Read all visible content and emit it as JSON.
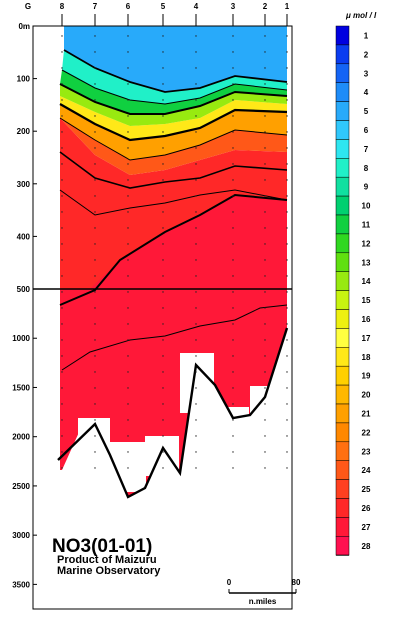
{
  "chart_data": {
    "type": "heatmap",
    "title": "NO3(01-01)",
    "subtitle_lines": [
      "Product of Maizuru",
      "Marine Observatory"
    ],
    "x_axis_corner_label": "G",
    "station_labels": [
      "8",
      "7",
      "6",
      "5",
      "4",
      "3",
      "2",
      "1"
    ],
    "depth_ticks_upper": [
      {
        "label": "0m",
        "value": 0
      },
      {
        "label": "100",
        "value": 100
      },
      {
        "label": "200",
        "value": 200
      },
      {
        "label": "300",
        "value": 300
      },
      {
        "label": "400",
        "value": 400
      },
      {
        "label": "500",
        "value": 500
      }
    ],
    "depth_ticks_lower": [
      {
        "label": "1000",
        "value": 1000
      },
      {
        "label": "1500",
        "value": 1500
      },
      {
        "label": "2000",
        "value": 2000
      },
      {
        "label": "2500",
        "value": 2500
      },
      {
        "label": "3000",
        "value": 3000
      },
      {
        "label": "3500",
        "value": 3500
      }
    ],
    "scale_unit": "μ mol / l",
    "scale_labels": [
      "1",
      "2",
      "3",
      "4",
      "5",
      "6",
      "7",
      "8",
      "9",
      "10",
      "11",
      "12",
      "13",
      "14",
      "15",
      "16",
      "17",
      "18",
      "19",
      "20",
      "21",
      "22",
      "23",
      "24",
      "25",
      "26",
      "27",
      "28"
    ],
    "scale_colors": [
      "#0000e0",
      "#0a3cf0",
      "#1464f5",
      "#1e8cf8",
      "#28aafa",
      "#30c8fc",
      "#2ee6f0",
      "#20f0c8",
      "#10e0a0",
      "#00d070",
      "#10d040",
      "#30d820",
      "#60e010",
      "#98ea10",
      "#c8f410",
      "#eef010",
      "#ffff40",
      "#ffe818",
      "#ffd000",
      "#ffb800",
      "#ffa000",
      "#ff8800",
      "#ff7010",
      "#ff5818",
      "#ff4020",
      "#ff2828",
      "#ff1838",
      "#ff1050"
    ],
    "scale_bar": {
      "start": 0,
      "end": 80,
      "label": "n.miles"
    }
  }
}
